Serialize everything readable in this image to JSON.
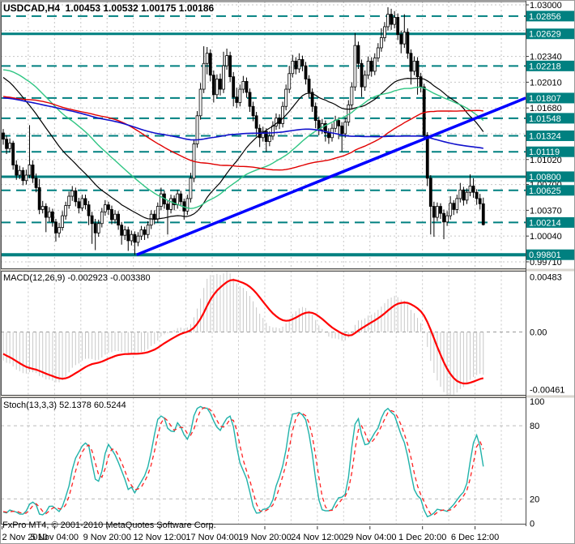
{
  "chart_data": {
    "type": "candlestick-with-indicators",
    "symbol": "USDCAD",
    "timeframe": "H4",
    "title": "USDCAD,H4  1.00453 1.00532 1.00175 1.00186",
    "last_bar_ohlc": {
      "open": "1.00453",
      "high": "1.00532",
      "low": "1.00175",
      "close": "1.00186"
    },
    "copyright": "FxPro MT4, © 2001-2010 MetaQuotes Software Corp.",
    "x_axis": {
      "labels": [
        "2 Nov 2010",
        "5 Nov 04:00",
        "9 Nov 20:00",
        "12 Nov 12:00",
        "17 Nov 04:00",
        "19 Nov 20:00",
        "24 Nov 12:00",
        "29 Nov 04:00",
        "1 Dec 20:00",
        "6 Dec 12:00"
      ]
    },
    "price_axis": {
      "gridline_prices": [
        1.03,
        1.0267,
        1.0234,
        1.0201,
        1.0168,
        1.0135,
        1.0102,
        1.007,
        1.0037,
        1.0004,
        0.9971
      ],
      "labels": [
        {
          "price": 1.03,
          "text": "1.03000"
        },
        {
          "price": 1.0234,
          "text": "1.02340"
        },
        {
          "price": 1.0201,
          "text": "1.02010"
        },
        {
          "price": 1.0168,
          "text": "1.01680"
        },
        {
          "price": 1.0102,
          "text": "1.01020"
        },
        {
          "price": 1.007,
          "text": "1.00700"
        },
        {
          "price": 1.0037,
          "text": "1.00370"
        },
        {
          "price": 1.0004,
          "text": "1.00040"
        },
        {
          "price": 0.9971,
          "text": "0.99710"
        }
      ]
    },
    "levels": [
      {
        "price": 1.02856,
        "text": "1.02856",
        "style": "dashed",
        "width": 2
      },
      {
        "price": 1.02629,
        "text": "1.02629",
        "style": "solid",
        "width": 3
      },
      {
        "price": 1.02218,
        "text": "1.02218",
        "style": "dashed",
        "width": 2
      },
      {
        "price": 1.01807,
        "text": "1.01807",
        "style": "dashed",
        "width": 2
      },
      {
        "price": 1.01548,
        "text": "1.01548",
        "style": "dashed",
        "width": 2
      },
      {
        "price": 1.01324,
        "text": "1.01324",
        "style": "dashed",
        "width": 2
      },
      {
        "price": 1.01119,
        "text": "1.01119",
        "style": "dashed",
        "width": 2
      },
      {
        "price": 1.008,
        "text": "1.00800",
        "style": "solid",
        "width": 3
      },
      {
        "price": 1.00625,
        "text": "1.00625",
        "style": "dashed",
        "width": 2
      },
      {
        "price": 1.00214,
        "text": "1.00214",
        "style": "dashed",
        "width": 2
      },
      {
        "price": 0.99801,
        "text": "0.99801",
        "style": "solid",
        "width": 4
      }
    ],
    "trendline": {
      "from": {
        "bar": 40.6,
        "price": 0.99801
      },
      "to": {
        "bar": 158.9,
        "price": 1.01807
      }
    },
    "moving_averages": [
      {
        "name": "ma-fast",
        "period_estimated": 34,
        "color": "#000000",
        "width": 1.2
      },
      {
        "name": "ma-medium",
        "period_estimated": 55,
        "color": "#2FC583",
        "width": 1.4
      },
      {
        "name": "ma-slow",
        "period_estimated": 89,
        "color": "#E10000",
        "width": 1.4
      },
      {
        "name": "ma-slowest",
        "period_estimated": 144,
        "color": "#1111CC",
        "width": 1.6
      }
    ],
    "macd": {
      "label": "MACD(12,26,9)",
      "values": "-0.002923 -0.003380",
      "params": [
        12,
        26,
        9
      ],
      "scale": {
        "max": "0.00483",
        "zero": "0.00",
        "min": "-0.00461"
      }
    },
    "stoch": {
      "label": "Stoch(13,3,3)",
      "values": "52.1378 60.5244",
      "params": [
        13,
        3,
        3
      ],
      "scale_labels": [
        {
          "v": 100,
          "text": "100"
        },
        {
          "v": 80,
          "text": "80"
        },
        {
          "v": 20,
          "text": "20"
        },
        {
          "v": 0,
          "text": "0"
        }
      ],
      "dashed_levels": [
        80,
        20
      ]
    },
    "colors": {
      "bull_body": "#FFFFFF",
      "bear_body": "#000000",
      "candle_outline": "#000000",
      "grid": "#C6C6C6",
      "level_teal": "#008080",
      "badge_text": "#FFFFFF",
      "trendline": "#0000FF",
      "macd_hist": "#C8C8C8",
      "macd_signal": "#FF0000",
      "stoch_k": "#20B2AA",
      "stoch_d": "#FF2222",
      "panel_border": "#4A4A4A",
      "text": "#000000"
    },
    "warmup_closes_estimated": [
      1.0165,
      1.0172,
      1.018,
      1.0189,
      1.0197,
      1.0204,
      1.0209,
      1.0204,
      1.0196,
      1.0187,
      1.0178,
      1.0169,
      1.0161,
      1.0155,
      1.0151,
      1.0149,
      1.0154,
      1.0161,
      1.017,
      1.0179,
      1.0188,
      1.0196,
      1.0203,
      1.0208,
      1.0205,
      1.0198,
      1.0189,
      1.018,
      1.0171,
      1.0163,
      1.0157,
      1.0152,
      1.015,
      1.0155,
      1.0163,
      1.0172,
      1.0181,
      1.019,
      1.0198,
      1.0204,
      1.0209,
      1.0205,
      1.0197,
      1.0188,
      1.0179,
      1.017,
      1.0162,
      1.0156,
      1.0151,
      1.0149,
      1.0154,
      1.0162,
      1.0171,
      1.018,
      1.0188,
      1.0178,
      1.0166,
      1.0154,
      1.0143,
      1.0133,
      1.0124,
      1.0117,
      1.0111,
      1.0107,
      1.0105,
      1.0106,
      1.011,
      1.0116,
      1.0123,
      1.0131,
      1.0138,
      1.0144,
      1.0148,
      1.0149,
      1.0147,
      1.0143,
      1.0137,
      1.013,
      1.0123,
      1.0117,
      1.0112,
      1.0108,
      1.0106,
      1.0107,
      1.011,
      1.0115,
      1.0121,
      1.0128,
      1.0135,
      1.0148,
      1.0163,
      1.0179,
      1.0195,
      1.021,
      1.0224,
      1.0237,
      1.0248,
      1.0257,
      1.0264,
      1.0268,
      1.027,
      1.0269,
      1.0266,
      1.0261,
      1.0255,
      1.0248,
      1.0241,
      1.0234,
      1.0228,
      1.0222,
      1.0226,
      1.0232,
      1.0239,
      1.0246,
      1.0252,
      1.0257,
      1.026,
      1.0261,
      1.0259,
      1.0255,
      1.0249,
      1.0242,
      1.0235,
      1.0228,
      1.0221,
      1.0215,
      1.021,
      1.0206,
      1.0203,
      1.02,
      1.0198,
      1.0195,
      1.0192,
      1.0188,
      1.0184,
      1.0179,
      1.0174,
      1.0168,
      1.0161,
      1.0154,
      1.0147,
      1.0141,
      1.0136
    ],
    "candles": [
      [
        1.0136,
        1.0141,
        1.0121,
        1.0128
      ],
      [
        1.0128,
        1.0133,
        1.0109,
        1.0116
      ],
      [
        1.0116,
        1.0129,
        1.0111,
        1.0123
      ],
      [
        1.0123,
        1.0126,
        1.0089,
        1.0095
      ],
      [
        1.0095,
        1.0101,
        1.0076,
        1.0082
      ],
      [
        1.0082,
        1.0094,
        1.0077,
        1.0088
      ],
      [
        1.0088,
        1.0092,
        1.0069,
        1.0075
      ],
      [
        1.0075,
        1.0089,
        1.007,
        1.0082
      ],
      [
        1.0082,
        1.0146,
        1.0078,
        1.0095
      ],
      [
        1.0095,
        1.0101,
        1.0072,
        1.0078
      ],
      [
        1.0078,
        1.0084,
        1.006,
        1.0066
      ],
      [
        1.0066,
        1.0077,
        1.0032,
        1.0038
      ],
      [
        1.0038,
        1.0049,
        1.0033,
        1.0042
      ],
      [
        1.0042,
        1.0046,
        1.0009,
        1.0028
      ],
      [
        1.0028,
        1.0041,
        1.0022,
        1.0035
      ],
      [
        1.0035,
        1.0039,
        1.0016,
        1.0022
      ],
      [
        1.0022,
        1.0026,
        0.9997,
        1.0008
      ],
      [
        1.0008,
        1.0021,
        1.0002,
        1.0015
      ],
      [
        1.0015,
        1.0036,
        1.0011,
        1.003
      ],
      [
        1.003,
        1.0048,
        1.0025,
        1.0043
      ],
      [
        1.0043,
        1.0061,
        1.0039,
        1.0055
      ],
      [
        1.0055,
        1.0068,
        1.0049,
        1.0062
      ],
      [
        1.0062,
        1.0066,
        1.0042,
        1.0048
      ],
      [
        1.0048,
        1.0053,
        1.0033,
        1.004
      ],
      [
        1.004,
        1.0057,
        1.0036,
        1.0052
      ],
      [
        1.0052,
        1.0057,
        1.0038,
        1.0044
      ],
      [
        1.0044,
        1.0049,
        1.0018,
        1.003
      ],
      [
        1.003,
        1.0035,
        0.9994,
        1.002
      ],
      [
        1.002,
        1.0026,
        0.9986,
        1.0008
      ],
      [
        1.0008,
        1.0025,
        1.0003,
        1.002
      ],
      [
        1.002,
        1.004,
        1.0015,
        1.0035
      ],
      [
        1.0035,
        1.005,
        1.003,
        1.0044
      ],
      [
        1.0044,
        1.0048,
        1.0031,
        1.0038
      ],
      [
        1.0038,
        1.0043,
        1.0019,
        1.0025
      ],
      [
        1.0025,
        1.0037,
        1.002,
        1.0032
      ],
      [
        1.0032,
        1.0036,
        1.0012,
        1.0018
      ],
      [
        1.0018,
        1.0022,
        0.9993,
        1.0005
      ],
      [
        1.0005,
        1.0017,
        0.9999,
        1.0012
      ],
      [
        1.0012,
        1.0016,
        0.9985,
        0.9998
      ],
      [
        0.9998,
        1.0011,
        0.9992,
        1.0006
      ],
      [
        1.0006,
        1.001,
        0.998,
        0.9996
      ],
      [
        0.9996,
        1.0009,
        0.9991,
        1.0004
      ],
      [
        1.0004,
        1.0017,
        0.9999,
        1.0012
      ],
      [
        1.0012,
        1.0016,
        0.9999,
        1.0006
      ],
      [
        1.0006,
        1.0023,
        1.0001,
        1.0018
      ],
      [
        1.0018,
        1.0037,
        1.0013,
        1.0032
      ],
      [
        1.0032,
        1.0037,
        1.0019,
        1.0026
      ],
      [
        1.0026,
        1.0047,
        1.0021,
        1.0042
      ],
      [
        1.0042,
        1.0066,
        1.0037,
        1.0058
      ],
      [
        1.0058,
        1.0062,
        1.0039,
        1.0045
      ],
      [
        1.0045,
        1.0049,
        1.0006,
        1.0038
      ],
      [
        1.0038,
        1.0057,
        1.0033,
        1.0052
      ],
      [
        1.0052,
        1.0056,
        1.0037,
        1.0044
      ],
      [
        1.0044,
        1.0063,
        1.0039,
        1.0058
      ],
      [
        1.0058,
        1.0062,
        1.0042,
        1.0048
      ],
      [
        1.0048,
        1.0052,
        1.0025,
        1.0036
      ],
      [
        1.0036,
        1.0057,
        1.0031,
        1.0052
      ],
      [
        1.0052,
        1.0085,
        1.0047,
        1.0078
      ],
      [
        1.0078,
        1.0128,
        1.0073,
        1.0122
      ],
      [
        1.0122,
        1.0164,
        1.0117,
        1.0158
      ],
      [
        1.0158,
        1.02,
        1.0153,
        1.0192
      ],
      [
        1.0192,
        1.0247,
        1.0187,
        1.0225
      ],
      [
        1.0225,
        1.0246,
        1.0211,
        1.0238
      ],
      [
        1.0238,
        1.0243,
        1.0202,
        1.021
      ],
      [
        1.021,
        1.0216,
        1.0175,
        1.0185
      ],
      [
        1.0185,
        1.0211,
        1.018,
        1.0205
      ],
      [
        1.0205,
        1.0212,
        1.0184,
        1.0192
      ],
      [
        1.0192,
        1.024,
        1.0187,
        1.0222
      ],
      [
        1.0222,
        1.0244,
        1.0217,
        1.0235
      ],
      [
        1.0235,
        1.024,
        1.0201,
        1.0208
      ],
      [
        1.0208,
        1.0214,
        1.017,
        1.0182
      ],
      [
        1.0182,
        1.0194,
        1.0168,
        1.0175
      ],
      [
        1.0175,
        1.0198,
        1.017,
        1.0192
      ],
      [
        1.0192,
        1.0209,
        1.0187,
        1.0202
      ],
      [
        1.0202,
        1.0207,
        1.0181,
        1.0188
      ],
      [
        1.0188,
        1.0193,
        1.0163,
        1.017
      ],
      [
        1.017,
        1.0176,
        1.0151,
        1.0158
      ],
      [
        1.0158,
        1.0163,
        1.0132,
        1.0142
      ],
      [
        1.0142,
        1.0147,
        1.0118,
        1.013
      ],
      [
        1.013,
        1.0144,
        1.0125,
        1.0138
      ],
      [
        1.0138,
        1.0142,
        1.0112,
        1.0125
      ],
      [
        1.0125,
        1.0138,
        1.0119,
        1.0132
      ],
      [
        1.0132,
        1.0151,
        1.0127,
        1.0145
      ],
      [
        1.0145,
        1.0161,
        1.014,
        1.0155
      ],
      [
        1.0155,
        1.016,
        1.0141,
        1.0148
      ],
      [
        1.0148,
        1.0176,
        1.0143,
        1.017
      ],
      [
        1.017,
        1.0198,
        1.0165,
        1.0192
      ],
      [
        1.0192,
        1.0222,
        1.0187,
        1.0212
      ],
      [
        1.0212,
        1.0236,
        1.0207,
        1.0228
      ],
      [
        1.0228,
        1.0233,
        1.0211,
        1.0218
      ],
      [
        1.0218,
        1.0238,
        1.0213,
        1.023
      ],
      [
        1.023,
        1.0235,
        1.0215,
        1.0222
      ],
      [
        1.0222,
        1.0227,
        1.0198,
        1.0205
      ],
      [
        1.0205,
        1.021,
        1.0181,
        1.0188
      ],
      [
        1.0188,
        1.0193,
        1.0163,
        1.017
      ],
      [
        1.017,
        1.0175,
        1.0142,
        1.0152
      ],
      [
        1.0152,
        1.0157,
        1.0133,
        1.014
      ],
      [
        1.014,
        1.0154,
        1.0135,
        1.0148
      ],
      [
        1.0148,
        1.0152,
        1.0125,
        1.0136
      ],
      [
        1.0136,
        1.0142,
        1.0122,
        1.013
      ],
      [
        1.013,
        1.0148,
        1.0125,
        1.0142
      ],
      [
        1.0142,
        1.0158,
        1.0137,
        1.0152
      ],
      [
        1.0152,
        1.0156,
        1.0128,
        1.0145
      ],
      [
        1.0145,
        1.015,
        1.0112,
        1.0135
      ],
      [
        1.0135,
        1.0156,
        1.013,
        1.015
      ],
      [
        1.015,
        1.0178,
        1.0145,
        1.0172
      ],
      [
        1.0172,
        1.0201,
        1.0167,
        1.0195
      ],
      [
        1.0195,
        1.0264,
        1.019,
        1.0248
      ],
      [
        1.0248,
        1.0253,
        1.0218,
        1.0225
      ],
      [
        1.0225,
        1.023,
        1.0182,
        1.0195
      ],
      [
        1.0195,
        1.0216,
        1.019,
        1.021
      ],
      [
        1.021,
        1.0234,
        1.0205,
        1.0228
      ],
      [
        1.0228,
        1.0233,
        1.0208,
        1.0215
      ],
      [
        1.0215,
        1.0238,
        1.021,
        1.0232
      ],
      [
        1.0232,
        1.0251,
        1.0227,
        1.0245
      ],
      [
        1.0245,
        1.027,
        1.024,
        1.0258
      ],
      [
        1.0258,
        1.0278,
        1.0253,
        1.0272
      ],
      [
        1.0272,
        1.0297,
        1.0267,
        1.0288
      ],
      [
        1.0288,
        1.0295,
        1.0268,
        1.0275
      ],
      [
        1.0275,
        1.0292,
        1.027,
        1.0284
      ],
      [
        1.0284,
        1.0289,
        1.0255,
        1.0262
      ],
      [
        1.0262,
        1.0267,
        1.0238,
        1.025
      ],
      [
        1.025,
        1.0288,
        1.0245,
        1.0265
      ],
      [
        1.0265,
        1.027,
        1.0231,
        1.0238
      ],
      [
        1.0238,
        1.0243,
        1.0198,
        1.0215
      ],
      [
        1.0215,
        1.0234,
        1.021,
        1.0228
      ],
      [
        1.0228,
        1.0233,
        1.0185,
        1.0208
      ],
      [
        1.0208,
        1.0213,
        1.0188,
        1.0195
      ],
      [
        1.0195,
        1.0199,
        1.0128,
        1.0133
      ],
      [
        1.0133,
        1.0137,
        1.0068,
        1.0078
      ],
      [
        1.0078,
        1.0082,
        1.0006,
        1.0042
      ],
      [
        1.0042,
        1.0048,
        1.0003,
        1.0028
      ],
      [
        1.0028,
        1.0047,
        1.0023,
        1.0042
      ],
      [
        1.0042,
        1.0046,
        1.0026,
        1.0033
      ],
      [
        1.0033,
        1.0038,
        1.0,
        1.0022
      ],
      [
        1.0022,
        1.0036,
        1.0017,
        1.003
      ],
      [
        1.003,
        1.0055,
        1.0025,
        1.0046
      ],
      [
        1.0046,
        1.005,
        1.0031,
        1.0038
      ],
      [
        1.0038,
        1.0057,
        1.0033,
        1.0052
      ],
      [
        1.0052,
        1.0072,
        1.0047,
        1.0063
      ],
      [
        1.0063,
        1.0067,
        1.0043,
        1.005
      ],
      [
        1.005,
        1.0065,
        1.0045,
        1.006
      ],
      [
        1.006,
        1.0083,
        1.0055,
        1.0068
      ],
      [
        1.0068,
        1.0078,
        1.0053,
        1.006
      ],
      [
        1.006,
        1.0064,
        1.0044,
        1.0052
      ],
      [
        1.0052,
        1.0058,
        1.0038,
        1.00453
      ],
      [
        1.00453,
        1.00532,
        1.00175,
        1.00186
      ]
    ]
  }
}
